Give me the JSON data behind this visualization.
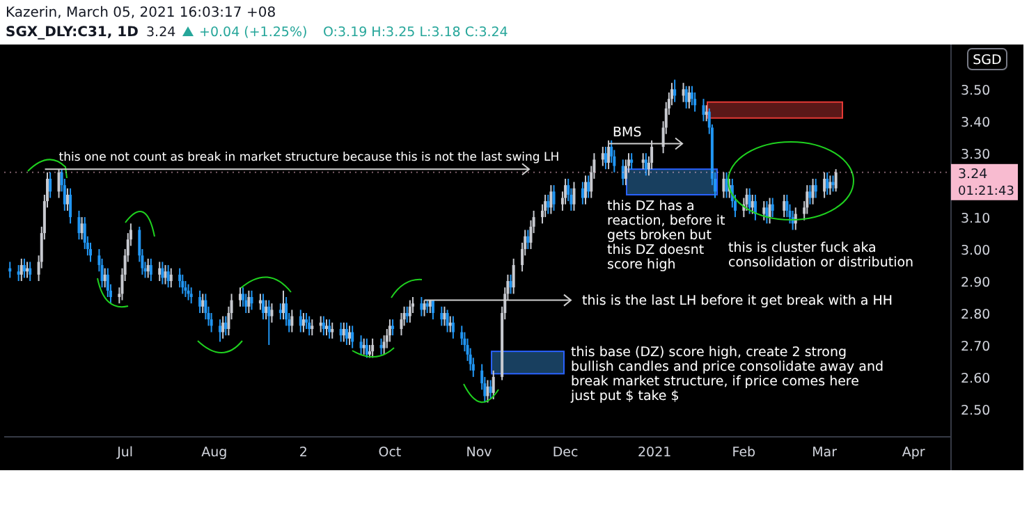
{
  "chart_data": {
    "type": "candlestick",
    "title": "SGX_DLY:C31, 1D",
    "subtitle": "Kazerin, March 05, 2021 16:03:17 +08",
    "ylabel": "SGD",
    "x": [
      "2020-05-22",
      "2020-05-25",
      "2020-05-26",
      "2020-05-27",
      "2020-05-28",
      "2020-05-29",
      "2020-06-01",
      "2020-06-02",
      "2020-06-03",
      "2020-06-04",
      "2020-06-05",
      "2020-06-08",
      "2020-06-09",
      "2020-06-10",
      "2020-06-11",
      "2020-06-12",
      "2020-06-15",
      "2020-06-16",
      "2020-06-17",
      "2020-06-18",
      "2020-06-19",
      "2020-06-22",
      "2020-06-23",
      "2020-06-24",
      "2020-06-25",
      "2020-06-26",
      "2020-06-29",
      "2020-06-30",
      "2020-07-01",
      "2020-07-02",
      "2020-07-03",
      "2020-07-06",
      "2020-07-07",
      "2020-07-08",
      "2020-07-09",
      "2020-07-10",
      "2020-07-13",
      "2020-07-14",
      "2020-07-15",
      "2020-07-16",
      "2020-07-17",
      "2020-07-20",
      "2020-07-21",
      "2020-07-22",
      "2020-07-23",
      "2020-07-24",
      "2020-07-27",
      "2020-07-28",
      "2020-07-29",
      "2020-07-30",
      "2020-07-31",
      "2020-08-03",
      "2020-08-04",
      "2020-08-05",
      "2020-08-06",
      "2020-08-07",
      "2020-08-10",
      "2020-08-11",
      "2020-08-12",
      "2020-08-13",
      "2020-08-14",
      "2020-08-17",
      "2020-08-18",
      "2020-08-19",
      "2020-08-20",
      "2020-08-21",
      "2020-08-24",
      "2020-08-25",
      "2020-08-26",
      "2020-08-27",
      "2020-08-28",
      "2020-08-31",
      "2020-09-01",
      "2020-09-02",
      "2020-09-03",
      "2020-09-04",
      "2020-09-07",
      "2020-09-08",
      "2020-09-09",
      "2020-09-10",
      "2020-09-11",
      "2020-09-14",
      "2020-09-15",
      "2020-09-16",
      "2020-09-17",
      "2020-09-18",
      "2020-09-21",
      "2020-09-22",
      "2020-09-23",
      "2020-09-24",
      "2020-09-25",
      "2020-09-28",
      "2020-09-29",
      "2020-09-30",
      "2020-10-01",
      "2020-10-02",
      "2020-10-05",
      "2020-10-06",
      "2020-10-07",
      "2020-10-08",
      "2020-10-09",
      "2020-10-12",
      "2020-10-13",
      "2020-10-14",
      "2020-10-15",
      "2020-10-16",
      "2020-10-19",
      "2020-10-20",
      "2020-10-21",
      "2020-10-22",
      "2020-10-23",
      "2020-10-26",
      "2020-10-27",
      "2020-10-28",
      "2020-10-29",
      "2020-10-30",
      "2020-11-02",
      "2020-11-03",
      "2020-11-04",
      "2020-11-05",
      "2020-11-06",
      "2020-11-09",
      "2020-11-10",
      "2020-11-11",
      "2020-11-12",
      "2020-11-13",
      "2020-11-16",
      "2020-11-17",
      "2020-11-18",
      "2020-11-19",
      "2020-11-20",
      "2020-11-23",
      "2020-11-24",
      "2020-11-25",
      "2020-11-26",
      "2020-11-27",
      "2020-11-30",
      "2020-12-01",
      "2020-12-02",
      "2020-12-03",
      "2020-12-04",
      "2020-12-07",
      "2020-12-08",
      "2020-12-09",
      "2020-12-10",
      "2020-12-11",
      "2020-12-14",
      "2020-12-15",
      "2020-12-16",
      "2020-12-17",
      "2020-12-18",
      "2020-12-21",
      "2020-12-22",
      "2020-12-23",
      "2020-12-24",
      "2020-12-28",
      "2020-12-29",
      "2020-12-30",
      "2020-12-31",
      "2021-01-04",
      "2021-01-05",
      "2021-01-06",
      "2021-01-07",
      "2021-01-08",
      "2021-01-11",
      "2021-01-12",
      "2021-01-13",
      "2021-01-14",
      "2021-01-15",
      "2021-01-18",
      "2021-01-19",
      "2021-01-20",
      "2021-01-21",
      "2021-01-22",
      "2021-01-25",
      "2021-01-26",
      "2021-01-27",
      "2021-01-28",
      "2021-01-29",
      "2021-02-01",
      "2021-02-02",
      "2021-02-03",
      "2021-02-04",
      "2021-02-05",
      "2021-02-08",
      "2021-02-09",
      "2021-02-10",
      "2021-02-11",
      "2021-02-15",
      "2021-02-16",
      "2021-02-17",
      "2021-02-18",
      "2021-02-19",
      "2021-02-22",
      "2021-02-23",
      "2021-02-24",
      "2021-02-25",
      "2021-02-26",
      "2021-03-01",
      "2021-03-02",
      "2021-03-03",
      "2021-03-04",
      "2021-03-05"
    ],
    "ohlc": [
      [
        2.94,
        2.96,
        2.91,
        2.93
      ],
      [
        2.93,
        2.95,
        2.9,
        2.92
      ],
      [
        2.92,
        2.97,
        2.9,
        2.95
      ],
      [
        2.95,
        2.97,
        2.91,
        2.93
      ],
      [
        2.93,
        2.96,
        2.91,
        2.94
      ],
      [
        2.94,
        2.96,
        2.9,
        2.92
      ],
      [
        2.92,
        2.98,
        2.9,
        2.96
      ],
      [
        2.96,
        3.07,
        2.94,
        3.05
      ],
      [
        3.05,
        3.17,
        3.03,
        3.15
      ],
      [
        3.15,
        3.24,
        3.13,
        3.22
      ],
      [
        3.22,
        3.24,
        3.16,
        3.18
      ],
      [
        3.18,
        3.25,
        3.16,
        3.24
      ],
      [
        3.24,
        3.25,
        3.18,
        3.2
      ],
      [
        3.2,
        3.22,
        3.12,
        3.14
      ],
      [
        3.14,
        3.19,
        3.12,
        3.17
      ],
      [
        3.17,
        3.19,
        3.08,
        3.1
      ],
      [
        3.1,
        3.12,
        3.03,
        3.05
      ],
      [
        3.05,
        3.1,
        3.03,
        3.08
      ],
      [
        3.08,
        3.1,
        3.0,
        3.02
      ],
      [
        3.02,
        3.04,
        2.98,
        3.0
      ],
      [
        3.0,
        3.02,
        2.96,
        2.98
      ],
      [
        2.98,
        3.0,
        2.93,
        2.95
      ],
      [
        2.95,
        2.97,
        2.88,
        2.9
      ],
      [
        2.9,
        2.94,
        2.88,
        2.92
      ],
      [
        2.92,
        2.94,
        2.85,
        2.87
      ],
      [
        2.87,
        2.89,
        2.83,
        2.85
      ],
      [
        2.85,
        2.88,
        2.83,
        2.86
      ],
      [
        2.86,
        2.94,
        2.84,
        2.92
      ],
      [
        2.92,
        3.0,
        2.9,
        2.98
      ],
      [
        2.98,
        3.05,
        2.96,
        3.03
      ],
      [
        3.03,
        3.08,
        3.01,
        3.06
      ],
      [
        3.06,
        3.07,
        2.96,
        2.98
      ],
      [
        2.98,
        3.0,
        2.92,
        2.94
      ],
      [
        2.94,
        2.96,
        2.91,
        2.93
      ],
      [
        2.93,
        2.97,
        2.91,
        2.95
      ],
      [
        2.95,
        2.97,
        2.9,
        2.92
      ],
      [
        2.92,
        2.96,
        2.9,
        2.94
      ],
      [
        2.94,
        2.96,
        2.89,
        2.91
      ],
      [
        2.91,
        2.95,
        2.89,
        2.93
      ],
      [
        2.93,
        2.95,
        2.88,
        2.9
      ],
      [
        2.9,
        2.94,
        2.88,
        2.92
      ],
      [
        2.92,
        2.94,
        2.88,
        2.9
      ],
      [
        2.9,
        2.92,
        2.86,
        2.88
      ],
      [
        2.88,
        2.9,
        2.85,
        2.87
      ],
      [
        2.87,
        2.89,
        2.84,
        2.86
      ],
      [
        2.86,
        2.88,
        2.83,
        2.85
      ],
      [
        2.85,
        2.87,
        2.8,
        2.82
      ],
      [
        2.82,
        2.86,
        2.8,
        2.84
      ],
      [
        2.84,
        2.86,
        2.78,
        2.8
      ],
      [
        2.8,
        2.82,
        2.76,
        2.78
      ],
      [
        2.78,
        2.8,
        2.74,
        2.76
      ],
      [
        2.76,
        2.78,
        2.71,
        2.74
      ],
      [
        2.74,
        2.79,
        2.72,
        2.77
      ],
      [
        2.77,
        2.79,
        2.73,
        2.75
      ],
      [
        2.75,
        2.82,
        2.73,
        2.8
      ],
      [
        2.8,
        2.86,
        2.78,
        2.84
      ],
      [
        2.84,
        2.88,
        2.82,
        2.86
      ],
      [
        2.86,
        2.88,
        2.82,
        2.84
      ],
      [
        2.84,
        2.86,
        2.8,
        2.82
      ],
      [
        2.82,
        2.87,
        2.8,
        2.85
      ],
      [
        2.85,
        2.87,
        2.81,
        2.83
      ],
      [
        2.83,
        2.86,
        2.81,
        2.84
      ],
      [
        2.84,
        2.86,
        2.78,
        2.8
      ],
      [
        2.8,
        2.84,
        2.78,
        2.82
      ],
      [
        2.82,
        2.84,
        2.7,
        2.79
      ],
      [
        2.79,
        2.83,
        2.77,
        2.81
      ],
      [
        2.81,
        2.83,
        2.78,
        2.8
      ],
      [
        2.8,
        2.87,
        2.78,
        2.83
      ],
      [
        2.83,
        2.85,
        2.76,
        2.78
      ],
      [
        2.78,
        2.8,
        2.74,
        2.76
      ],
      [
        2.76,
        2.81,
        2.74,
        2.79
      ],
      [
        2.79,
        2.81,
        2.74,
        2.76
      ],
      [
        2.76,
        2.8,
        2.74,
        2.78
      ],
      [
        2.78,
        2.8,
        2.75,
        2.77
      ],
      [
        2.77,
        2.79,
        2.73,
        2.75
      ],
      [
        2.75,
        2.78,
        2.73,
        2.76
      ],
      [
        2.76,
        2.79,
        2.74,
        2.77
      ],
      [
        2.77,
        2.79,
        2.73,
        2.75
      ],
      [
        2.75,
        2.78,
        2.73,
        2.76
      ],
      [
        2.76,
        2.78,
        2.72,
        2.74
      ],
      [
        2.74,
        2.77,
        2.72,
        2.75
      ],
      [
        2.75,
        2.77,
        2.71,
        2.73
      ],
      [
        2.73,
        2.77,
        2.71,
        2.75
      ],
      [
        2.75,
        2.77,
        2.7,
        2.72
      ],
      [
        2.72,
        2.76,
        2.7,
        2.74
      ],
      [
        2.74,
        2.76,
        2.69,
        2.71
      ],
      [
        2.71,
        2.73,
        2.67,
        2.69
      ],
      [
        2.69,
        2.72,
        2.67,
        2.7
      ],
      [
        2.7,
        2.72,
        2.66,
        2.67
      ],
      [
        2.67,
        2.7,
        2.66,
        2.68
      ],
      [
        2.68,
        2.72,
        2.66,
        2.7
      ],
      [
        2.7,
        2.72,
        2.67,
        2.69
      ],
      [
        2.69,
        2.73,
        2.67,
        2.71
      ],
      [
        2.71,
        2.75,
        2.69,
        2.73
      ],
      [
        2.73,
        2.78,
        2.71,
        2.76
      ],
      [
        2.76,
        2.78,
        2.73,
        2.75
      ],
      [
        2.75,
        2.8,
        2.73,
        2.78
      ],
      [
        2.78,
        2.82,
        2.76,
        2.8
      ],
      [
        2.8,
        2.82,
        2.77,
        2.79
      ],
      [
        2.79,
        2.84,
        2.77,
        2.82
      ],
      [
        2.82,
        2.85,
        2.8,
        2.83
      ],
      [
        2.83,
        2.85,
        2.79,
        2.81
      ],
      [
        2.81,
        2.84,
        2.79,
        2.83
      ],
      [
        2.83,
        2.84,
        2.8,
        2.82
      ],
      [
        2.82,
        2.84,
        2.8,
        2.84
      ],
      [
        2.84,
        2.84,
        2.78,
        2.8
      ],
      [
        2.8,
        2.82,
        2.76,
        2.78
      ],
      [
        2.78,
        2.82,
        2.76,
        2.8
      ],
      [
        2.8,
        2.81,
        2.74,
        2.76
      ],
      [
        2.76,
        2.79,
        2.74,
        2.77
      ],
      [
        2.77,
        2.79,
        2.72,
        2.74
      ],
      [
        2.74,
        2.76,
        2.7,
        2.72
      ],
      [
        2.72,
        2.74,
        2.68,
        2.7
      ],
      [
        2.7,
        2.72,
        2.65,
        2.67
      ],
      [
        2.67,
        2.69,
        2.62,
        2.64
      ],
      [
        2.64,
        2.66,
        2.6,
        2.62
      ],
      [
        2.62,
        2.64,
        2.56,
        2.58
      ],
      [
        2.58,
        2.6,
        2.52,
        2.54
      ],
      [
        2.54,
        2.59,
        2.52,
        2.57
      ],
      [
        2.57,
        2.59,
        2.53,
        2.55
      ],
      [
        2.55,
        2.62,
        2.53,
        2.6
      ],
      [
        2.6,
        2.82,
        2.59,
        2.8
      ],
      [
        2.8,
        2.88,
        2.78,
        2.86
      ],
      [
        2.86,
        2.92,
        2.84,
        2.9
      ],
      [
        2.9,
        2.92,
        2.86,
        2.88
      ],
      [
        2.88,
        2.97,
        2.86,
        2.95
      ],
      [
        2.95,
        3.02,
        2.93,
        3.0
      ],
      [
        3.0,
        3.06,
        2.98,
        3.04
      ],
      [
        3.04,
        3.06,
        3.0,
        3.02
      ],
      [
        3.02,
        3.09,
        3.0,
        3.07
      ],
      [
        3.07,
        3.12,
        3.05,
        3.1
      ],
      [
        3.1,
        3.14,
        3.08,
        3.12
      ],
      [
        3.12,
        3.17,
        3.1,
        3.15
      ],
      [
        3.15,
        3.17,
        3.11,
        3.13
      ],
      [
        3.13,
        3.2,
        3.11,
        3.18
      ],
      [
        3.18,
        3.2,
        3.12,
        3.14
      ],
      [
        3.14,
        3.18,
        3.12,
        3.16
      ],
      [
        3.16,
        3.22,
        3.14,
        3.2
      ],
      [
        3.2,
        3.22,
        3.15,
        3.17
      ],
      [
        3.17,
        3.19,
        3.12,
        3.14
      ],
      [
        3.14,
        3.21,
        3.12,
        3.19
      ],
      [
        3.19,
        3.21,
        3.14,
        3.16
      ],
      [
        3.16,
        3.23,
        3.14,
        3.21
      ],
      [
        3.21,
        3.23,
        3.16,
        3.18
      ],
      [
        3.18,
        3.26,
        3.16,
        3.24
      ],
      [
        3.24,
        3.3,
        3.22,
        3.28
      ],
      [
        3.28,
        3.32,
        3.26,
        3.3
      ],
      [
        3.3,
        3.32,
        3.25,
        3.27
      ],
      [
        3.27,
        3.34,
        3.25,
        3.32
      ],
      [
        3.32,
        3.34,
        3.27,
        3.29
      ],
      [
        3.29,
        3.31,
        3.24,
        3.26
      ],
      [
        3.26,
        3.28,
        3.2,
        3.22
      ],
      [
        3.22,
        3.28,
        3.2,
        3.26
      ],
      [
        3.26,
        3.3,
        3.24,
        3.28
      ],
      [
        3.28,
        3.3,
        3.25,
        3.27
      ],
      [
        3.27,
        3.3,
        3.25,
        3.28
      ],
      [
        3.28,
        3.3,
        3.23,
        3.25
      ],
      [
        3.25,
        3.29,
        3.23,
        3.27
      ],
      [
        3.27,
        3.34,
        3.25,
        3.32
      ],
      [
        3.32,
        3.4,
        3.3,
        3.38
      ],
      [
        3.38,
        3.46,
        3.36,
        3.44
      ],
      [
        3.44,
        3.49,
        3.42,
        3.47
      ],
      [
        3.47,
        3.52,
        3.45,
        3.5
      ],
      [
        3.5,
        3.53,
        3.46,
        3.48
      ],
      [
        3.48,
        3.52,
        3.46,
        3.5
      ],
      [
        3.5,
        3.51,
        3.44,
        3.46
      ],
      [
        3.46,
        3.51,
        3.44,
        3.49
      ],
      [
        3.49,
        3.51,
        3.45,
        3.47
      ],
      [
        3.47,
        3.49,
        3.43,
        3.45
      ],
      [
        3.45,
        3.47,
        3.4,
        3.42
      ],
      [
        3.42,
        3.45,
        3.4,
        3.43
      ],
      [
        3.43,
        3.44,
        3.36,
        3.38
      ],
      [
        3.38,
        3.39,
        3.2,
        3.22
      ],
      [
        3.22,
        3.24,
        3.16,
        3.18
      ],
      [
        3.18,
        3.24,
        3.16,
        3.22
      ],
      [
        3.22,
        3.24,
        3.16,
        3.18
      ],
      [
        3.18,
        3.22,
        3.16,
        3.2
      ],
      [
        3.2,
        3.22,
        3.13,
        3.15
      ],
      [
        3.15,
        3.17,
        3.1,
        3.12
      ],
      [
        3.12,
        3.16,
        3.1,
        3.14
      ],
      [
        3.14,
        3.19,
        3.12,
        3.17
      ],
      [
        3.17,
        3.19,
        3.11,
        3.13
      ],
      [
        3.13,
        3.17,
        3.11,
        3.15
      ],
      [
        3.15,
        3.17,
        3.09,
        3.11
      ],
      [
        3.11,
        3.15,
        3.09,
        3.13
      ],
      [
        3.13,
        3.15,
        3.08,
        3.1
      ],
      [
        3.1,
        3.16,
        3.08,
        3.14
      ],
      [
        3.14,
        3.16,
        3.1,
        3.12
      ],
      [
        3.12,
        3.17,
        3.1,
        3.15
      ],
      [
        3.15,
        3.17,
        3.1,
        3.12
      ],
      [
        3.12,
        3.14,
        3.08,
        3.1
      ],
      [
        3.1,
        3.12,
        3.06,
        3.08
      ],
      [
        3.08,
        3.13,
        3.06,
        3.11
      ],
      [
        3.11,
        3.15,
        3.09,
        3.13
      ],
      [
        3.13,
        3.2,
        3.11,
        3.18
      ],
      [
        3.18,
        3.2,
        3.14,
        3.16
      ],
      [
        3.16,
        3.22,
        3.14,
        3.2
      ],
      [
        3.2,
        3.22,
        3.16,
        3.18
      ],
      [
        3.18,
        3.24,
        3.16,
        3.22
      ],
      [
        3.22,
        3.24,
        3.17,
        3.19
      ],
      [
        3.19,
        3.23,
        3.17,
        3.21
      ],
      [
        3.21,
        3.23,
        3.18,
        3.2
      ],
      [
        3.19,
        3.25,
        3.18,
        3.24
      ]
    ],
    "xlim": [
      "2020-05-20",
      "2021-04-14"
    ],
    "xticks": [
      {
        "value": "2020-07-01",
        "label": "Jul"
      },
      {
        "value": "2020-08-01",
        "label": "Aug"
      },
      {
        "value": "2020-09-01",
        "label": "2"
      },
      {
        "value": "2020-10-01",
        "label": "Oct"
      },
      {
        "value": "2020-11-01",
        "label": "Nov"
      },
      {
        "value": "2020-12-01",
        "label": "Dec"
      },
      {
        "value": "2021-01-01",
        "label": "2021"
      },
      {
        "value": "2021-02-01",
        "label": "Feb"
      },
      {
        "value": "2021-03-01",
        "label": "Mar"
      },
      {
        "value": "2021-04-01",
        "label": "Apr"
      }
    ],
    "ylim": [
      2.43,
      3.64
    ],
    "yticks": [
      {
        "value": 2.5,
        "label": "2.50"
      },
      {
        "value": 2.6,
        "label": "2.60"
      },
      {
        "value": 2.7,
        "label": "2.70"
      },
      {
        "value": 2.8,
        "label": "2.80"
      },
      {
        "value": 2.9,
        "label": "2.90"
      },
      {
        "value": 3.0,
        "label": "3.00"
      },
      {
        "value": 3.1,
        "label": "3.10"
      },
      {
        "value": 3.3,
        "label": "3.30"
      },
      {
        "value": 3.4,
        "label": "3.40"
      },
      {
        "value": 3.5,
        "label": "3.50"
      }
    ],
    "ref_lines": [
      {
        "axis": "y",
        "value": 3.24,
        "label": "3.24",
        "color": "#f8bbd0"
      }
    ],
    "bands": [
      {
        "axis": "y",
        "from": 3.17,
        "to": 3.25,
        "color": "#1c4a70"
      },
      {
        "axis": "y",
        "from": 2.61,
        "to": 2.68,
        "color": "#1c4a70"
      },
      {
        "axis": "y",
        "from": 3.41,
        "to": 3.46,
        "color": "#6a1c1c"
      }
    ],
    "annotations": [
      {
        "text": "this one not count as break in market structure because this is not the last swing LH",
        "x": "2020-06-08",
        "y": 3.25
      },
      {
        "text": "BMS",
        "x": "2020-12-16",
        "y": 3.33
      },
      {
        "text": "this is the last LH before it get break with a HH",
        "x": "2020-10-13",
        "y": 2.84
      },
      "this DZ has a\nreaction, before it\ngets broken but\nthis DZ doesnt\nscore high",
      "this is cluster fuck aka\nconsolidation or distribution",
      "this base (DZ) score high, create 2 strong\nbullish candles and price consolidate away and\nbreak market structure, if price comes here\njust put $ take $",
      "3.24",
      "+0.04 (+1.25%)",
      "O:3.19 H:3.25 L:3.18 C:3.24",
      "01:21:43"
    ]
  }
}
